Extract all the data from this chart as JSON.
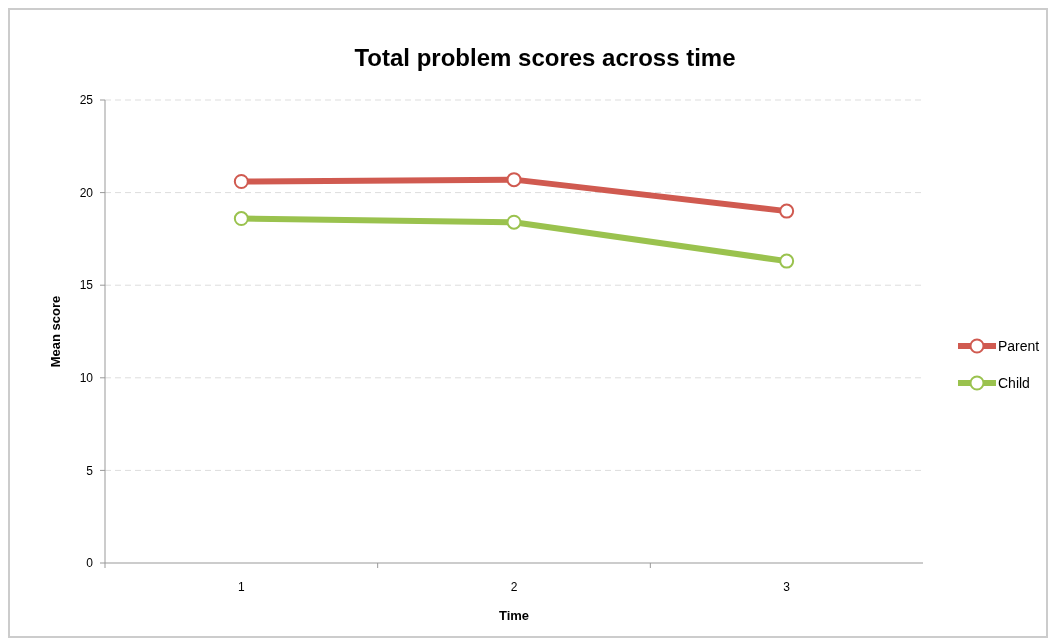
{
  "chart_data": {
    "type": "line",
    "title": "Total problem scores across time",
    "xlabel": "Time",
    "ylabel": "Mean score",
    "categories": [
      "1",
      "2",
      "3"
    ],
    "series": [
      {
        "name": "Parent",
        "color": "#d05a50",
        "values": [
          20.6,
          20.7,
          19.0
        ]
      },
      {
        "name": "Child",
        "color": "#9ac24e",
        "values": [
          18.6,
          18.4,
          16.3
        ]
      }
    ],
    "ylim": [
      0,
      25
    ],
    "yticks": [
      0,
      5,
      10,
      15,
      20,
      25
    ],
    "grid": "y",
    "legend": "right",
    "marker": "circle",
    "line_style": "solid"
  }
}
